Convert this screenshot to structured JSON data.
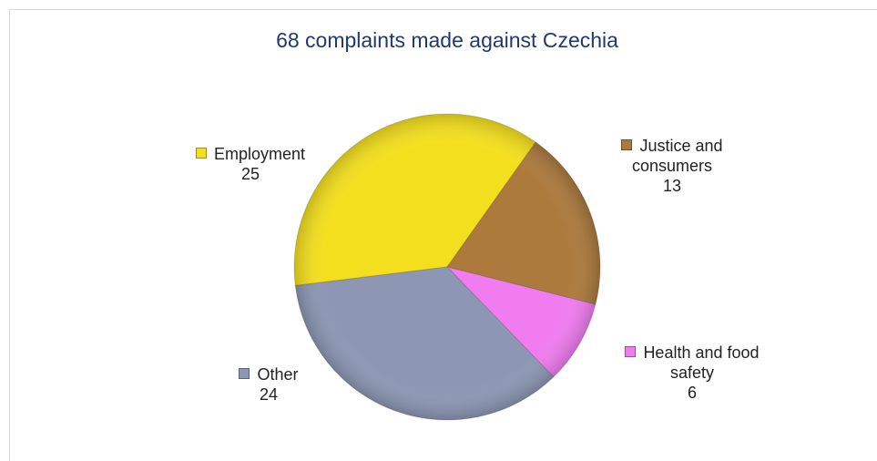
{
  "chart_data": {
    "type": "pie",
    "title": "68 complaints made against Czechia",
    "categories": [
      "Employment",
      "Justice and consumers",
      "Health and food safety",
      "Other"
    ],
    "values": [
      25,
      13,
      6,
      24
    ],
    "colors": [
      "#f4df1e",
      "#ad7a3e",
      "#f07cf0",
      "#8d97b4"
    ]
  }
}
